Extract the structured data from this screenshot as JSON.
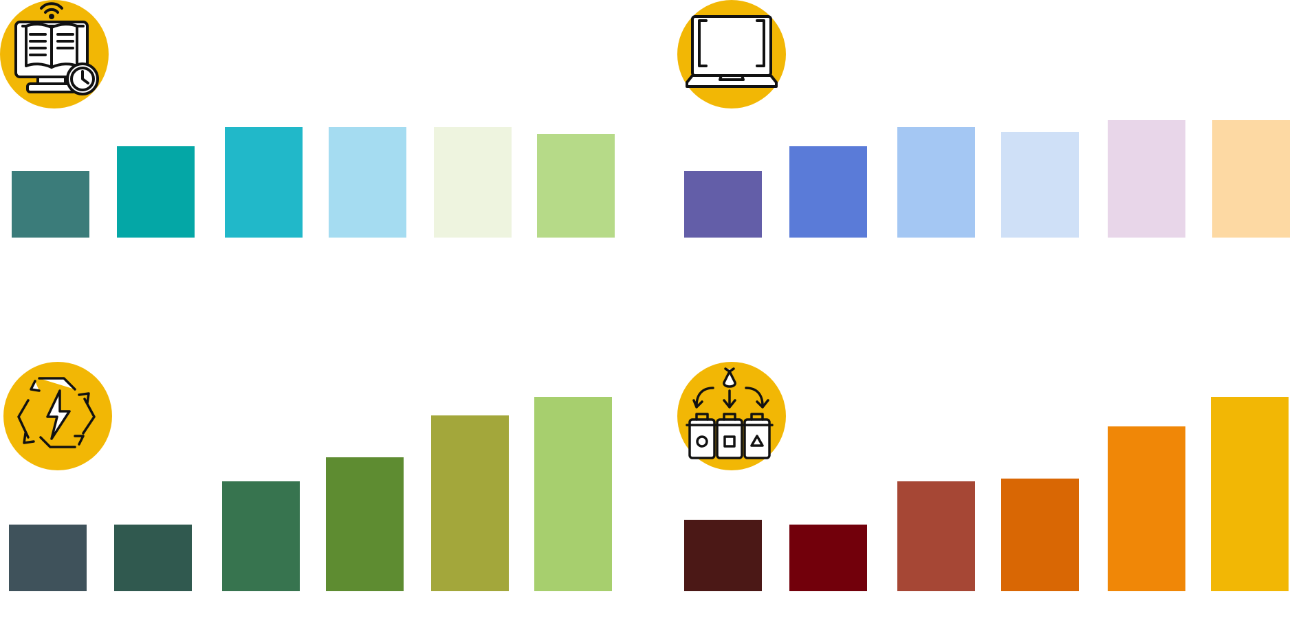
{
  "chart_data": [
    {
      "type": "bar",
      "icon": "online-book-clock-icon",
      "categories": [
        "",
        "",
        "",
        "",
        "",
        ""
      ],
      "values": [
        97,
        133,
        161,
        161,
        161,
        151
      ],
      "colors": [
        "#3b7c7a",
        "#04a7a6",
        "#21b8c9",
        "#a5dcf1",
        "#eef4df",
        "#b6da88"
      ],
      "ylim": [
        0,
        195
      ],
      "grid": false,
      "legend": "none"
    },
    {
      "type": "bar",
      "icon": "laptop-icon",
      "categories": [
        "",
        "",
        "",
        "",
        "",
        ""
      ],
      "values": [
        97,
        133,
        161,
        154,
        171,
        171
      ],
      "colors": [
        "#635ea8",
        "#5a7bd8",
        "#a4c7f3",
        "#cfe0f7",
        "#e8d6e9",
        "#fdd9a3"
      ],
      "ylim": [
        0,
        195
      ],
      "grid": false,
      "legend": "none"
    },
    {
      "type": "bar",
      "icon": "renewable-energy-cycle-icon",
      "categories": [
        "",
        "",
        "",
        "",
        "",
        ""
      ],
      "values": [
        97,
        97,
        160,
        195,
        256,
        283
      ],
      "colors": [
        "#3f525b",
        "#30594f",
        "#37744f",
        "#5e8c31",
        "#a3a73b",
        "#a7cf6e"
      ],
      "ylim": [
        0,
        295
      ],
      "grid": false,
      "legend": "none"
    },
    {
      "type": "bar",
      "icon": "waste-sorting-bins-icon",
      "categories": [
        "",
        "",
        "",
        "",
        "",
        ""
      ],
      "values": [
        104,
        97,
        160,
        164,
        240,
        283
      ],
      "colors": [
        "#4b1816",
        "#72000b",
        "#a64735",
        "#d96704",
        "#f08707",
        "#f2b705"
      ],
      "ylim": [
        0,
        295
      ],
      "grid": false,
      "legend": "none"
    }
  ]
}
